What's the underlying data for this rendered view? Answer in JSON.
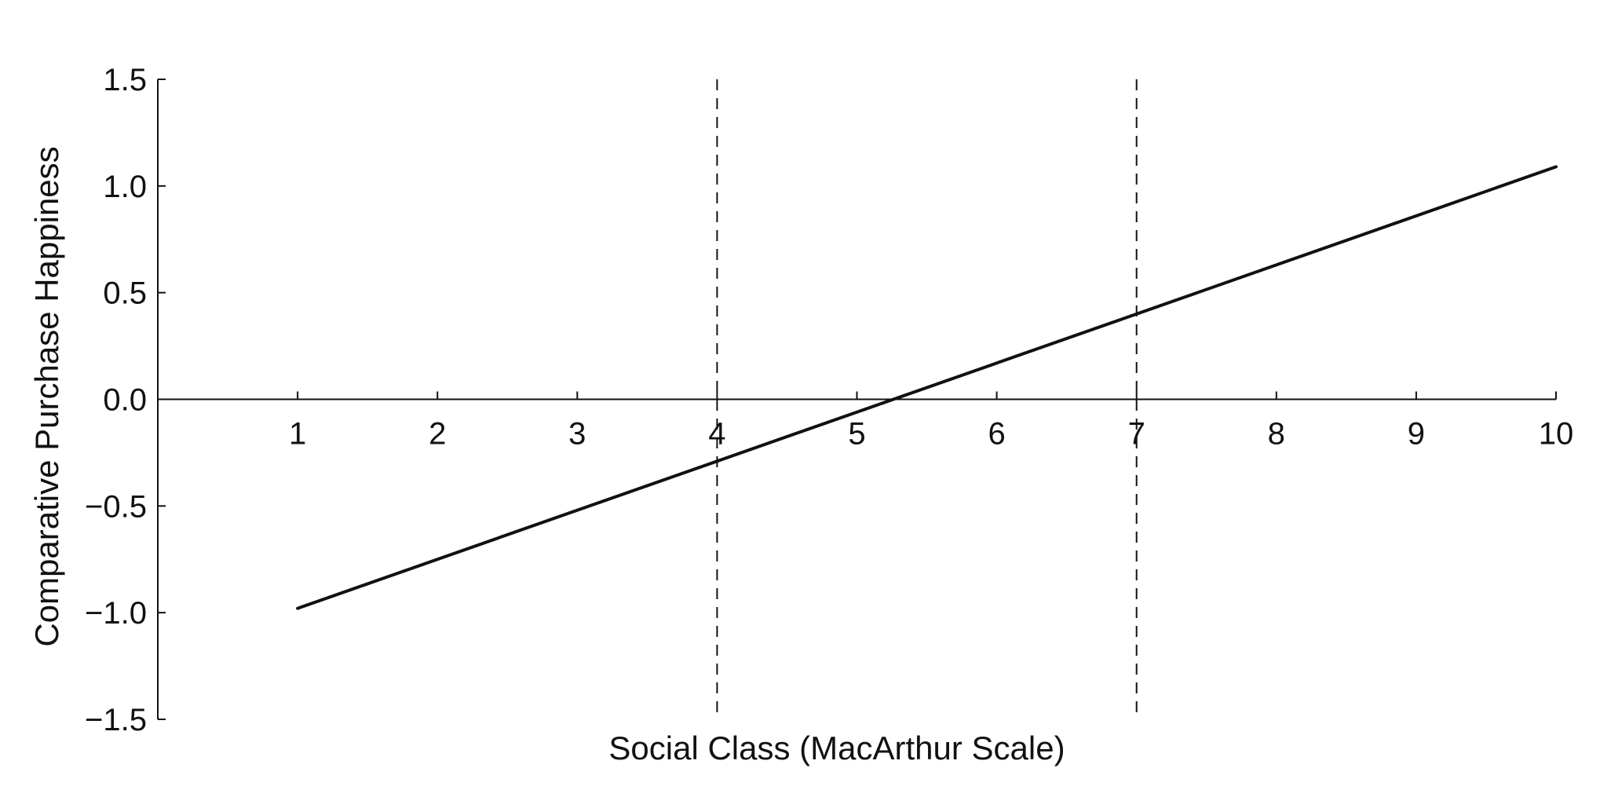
{
  "chart_data": {
    "type": "line",
    "xlabel": "Social Class (MacArthur Scale)",
    "ylabel": "Comparative Purchase Happiness",
    "x_ticks": [
      "1",
      "2",
      "3",
      "4",
      "5",
      "6",
      "7",
      "8",
      "9",
      "10"
    ],
    "y_ticks": [
      "1.5",
      "1.0",
      "0.5",
      "0.0",
      "−0.5",
      "−1.0",
      "−1.5"
    ],
    "xlim": [
      0,
      10
    ],
    "ylim": [
      -1.5,
      1.5
    ],
    "series": [
      {
        "x": [
          1,
          10
        ],
        "y": [
          -0.98,
          1.09
        ],
        "color": "#111111"
      }
    ],
    "reference_lines": [
      {
        "axis": "x",
        "value": 4,
        "style": "dashed"
      },
      {
        "axis": "x",
        "value": 7,
        "style": "dashed"
      }
    ],
    "x_axis_at_y": 0,
    "grid": false,
    "legend": "none"
  }
}
